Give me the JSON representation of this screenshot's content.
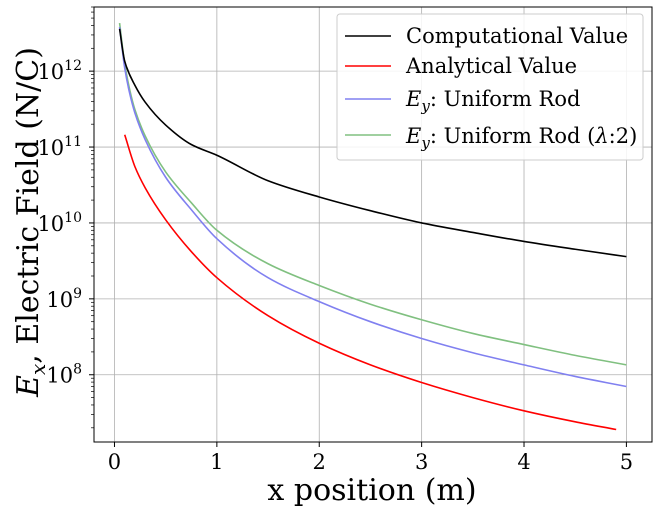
{
  "chart_data": {
    "type": "line",
    "xlabel": "x position (m)",
    "ylabel": "E_x, Electric Field (N/C)",
    "ylabel_parts": {
      "symbol": "E",
      "subscript": "x",
      "rest": ", Electric Field (N/C)"
    },
    "xlim": [
      -0.2,
      5.25
    ],
    "ylim": [
      13000000.0,
      7000000000000.0
    ],
    "yscale": "log",
    "grid": true,
    "legend_position": "top-right",
    "x_ticks": [
      {
        "value": 0,
        "label": "0"
      },
      {
        "value": 1,
        "label": "1"
      },
      {
        "value": 2,
        "label": "2"
      },
      {
        "value": 3,
        "label": "3"
      },
      {
        "value": 4,
        "label": "4"
      },
      {
        "value": 5,
        "label": "5"
      }
    ],
    "y_ticks": [
      {
        "value": 100000000.0,
        "base": "10",
        "exp": "8"
      },
      {
        "value": 1000000000.0,
        "base": "10",
        "exp": "9"
      },
      {
        "value": 10000000000.0,
        "base": "10",
        "exp": "10"
      },
      {
        "value": 100000000000.0,
        "base": "10",
        "exp": "11"
      },
      {
        "value": 1000000000000.0,
        "base": "10",
        "exp": "12"
      }
    ],
    "series": [
      {
        "name": "Computational Value",
        "color": "#000000",
        "opacity": 1,
        "x": [
          0.05,
          0.1,
          0.2,
          0.3,
          0.5,
          0.75,
          1.0,
          1.5,
          2.0,
          2.5,
          3.0,
          3.5,
          4.0,
          4.5,
          5.0
        ],
        "y": [
          3600000000000.0,
          1350000000000.0,
          650000000000.0,
          390000000000.0,
          195000000000.0,
          108000000000.0,
          78000000000.0,
          36000000000.0,
          22000000000.0,
          14500000000.0,
          10000000000.0,
          7500000000.0,
          5700000000.0,
          4500000000.0,
          3600000000.0
        ]
      },
      {
        "name": "Analytical Value",
        "color": "#ff0000",
        "opacity": 1,
        "x": [
          0.1,
          0.2,
          0.3,
          0.5,
          0.75,
          1.0,
          1.5,
          2.0,
          2.5,
          3.0,
          3.5,
          4.0,
          4.5,
          4.9
        ],
        "y": [
          145000000000.0,
          55000000000.0,
          29000000000.0,
          11000000000.0,
          4200000000.0,
          1900000000.0,
          600000000.0,
          260000000.0,
          135000000.0,
          79000000.0,
          50000000.0,
          33500000.0,
          24000000.0,
          19000000.0
        ]
      },
      {
        "name": "E_y: Uniform Rod",
        "label_parts": {
          "symbol": "E",
          "subscript": "y",
          "rest": ": Uniform Rod"
        },
        "color": "#8080f0",
        "opacity": 1,
        "x": [
          0.05,
          0.1,
          0.15,
          0.2,
          0.3,
          0.5,
          0.75,
          1.0,
          1.5,
          2.0,
          2.5,
          3.0,
          3.5,
          4.0,
          4.5,
          5.0
        ],
        "y": [
          3800000000000.0,
          1100000000000.0,
          500000000000.0,
          280000000000.0,
          125000000000.0,
          40000000000.0,
          15000000000.0,
          6200000000.0,
          1900000000.0,
          920000000.0,
          500000000.0,
          300000000.0,
          195000000.0,
          135000000.0,
          95000000.0,
          70000000.0
        ]
      },
      {
        "name": "E_y: Uniform Rod (λ:2)",
        "label_parts": {
          "symbol": "E",
          "subscript": "y",
          "rest": ": Uniform Rod (",
          "lambda": "λ",
          "rest2": ":2)"
        },
        "color": "#80c080",
        "opacity": 1,
        "x": [
          0.05,
          0.1,
          0.15,
          0.2,
          0.3,
          0.5,
          0.75,
          1.0,
          1.5,
          2.0,
          2.5,
          3.0,
          3.5,
          4.0,
          4.5,
          5.0
        ],
        "y": [
          4300000000000.0,
          1250000000000.0,
          560000000000.0,
          310000000000.0,
          140000000000.0,
          47000000000.0,
          18500000000.0,
          8000000000.0,
          2900000000.0,
          1500000000.0,
          850000000.0,
          530000000.0,
          350000000.0,
          250000000.0,
          180000000.0,
          135000000.0
        ]
      }
    ]
  }
}
